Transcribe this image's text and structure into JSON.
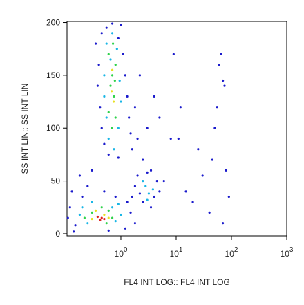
{
  "chart_data": {
    "type": "scatter",
    "x_label": "FL4 INT LOG:: FL4 INT LOG",
    "y_label": "SS INT LIN:: SS INT LIN",
    "xscale": "log",
    "xlim": [
      0.106,
      1000
    ],
    "ylim": [
      -2,
      201
    ],
    "xticks": [
      {
        "value": 1,
        "label": "10",
        "exponent": "0"
      },
      {
        "value": 10,
        "label": "10",
        "exponent": "1"
      },
      {
        "value": 100,
        "label": "10",
        "exponent": "2"
      },
      {
        "value": 1000,
        "label": "10",
        "exponent": "3"
      }
    ],
    "yticks": [
      0,
      50,
      100,
      150,
      200
    ],
    "series": [
      {
        "color": "#1a1acc",
        "x": [
          0.45,
          0.55,
          0.9,
          1.1,
          0.4,
          1.2,
          0.38,
          1.3,
          0.42,
          1.4,
          0.45,
          1.5,
          0.5,
          0.6,
          0.9,
          1.6,
          2.0,
          2.5,
          3,
          1.8,
          0.35,
          1.0,
          0.7,
          2.2,
          4,
          5,
          8,
          3.5,
          6,
          0.12,
          0.15,
          0.2,
          0.13,
          0.25,
          0.3,
          0.18,
          0.5,
          1.2,
          1.5,
          1.3,
          0.8,
          0.11,
          0.14,
          0.6,
          1.8,
          1.8,
          2,
          2.5,
          3,
          4,
          4.5,
          5,
          3.5,
          2.2,
          1.6,
          12,
          15,
          20,
          25,
          30,
          40,
          50,
          60,
          65,
          70,
          75,
          80,
          90,
          70,
          9,
          11,
          45,
          55
        ],
        "values": [
          190,
          195,
          185,
          170,
          160,
          150,
          140,
          130,
          120,
          110,
          100,
          95,
          85,
          75,
          72,
          80,
          90,
          70,
          100,
          120,
          180,
          198,
          199,
          150,
          130,
          110,
          90,
          60,
          50,
          25,
          8,
          35,
          40,
          45,
          60,
          55,
          40,
          5,
          20,
          30,
          35,
          15,
          2,
          3,
          10,
          45,
          55,
          30,
          58,
          35,
          50,
          40,
          25,
          38,
          35,
          120,
          40,
          30,
          80,
          55,
          20,
          100,
          160,
          170,
          145,
          140,
          60,
          35,
          10,
          170,
          90,
          70,
          120
        ]
      },
      {
        "color": "#19b6e6",
        "x": [
          0.55,
          0.85,
          0.5,
          0.95,
          0.55,
          0.9,
          0.6,
          0.75,
          0.7,
          1.0,
          0.5,
          0.65,
          0.2,
          0.25,
          0.7,
          0.8,
          0.3,
          0.18,
          1.0,
          0.9,
          2.8,
          3.2,
          2.5,
          3.8,
          3
        ],
        "values": [
          180,
          175,
          150,
          145,
          110,
          100,
          90,
          80,
          190,
          125,
          130,
          165,
          25,
          10,
          25,
          12,
          30,
          18,
          18,
          28,
          45,
          38,
          50,
          42,
          32
        ]
      },
      {
        "color": "#2ed24a",
        "x": [
          0.6,
          0.8,
          0.65,
          0.75,
          0.7,
          0.6,
          0.8,
          0.72,
          0.68,
          0.78,
          0.3,
          0.6,
          0.22,
          0.7,
          0.45,
          0.55
        ],
        "values": [
          170,
          160,
          140,
          130,
          150,
          115,
          110,
          180,
          100,
          145,
          20,
          22,
          15,
          15,
          25,
          10
        ]
      },
      {
        "color": "#e8e020",
        "x": [
          0.7,
          0.68,
          0.74,
          0.3,
          0.5,
          0.35,
          0.6
        ],
        "values": [
          155,
          135,
          125,
          14,
          18,
          22,
          15
        ]
      },
      {
        "color": "#e02020",
        "x": [
          0.38,
          0.45,
          0.42,
          0.5
        ],
        "values": [
          16,
          15,
          13,
          14
        ]
      }
    ]
  }
}
